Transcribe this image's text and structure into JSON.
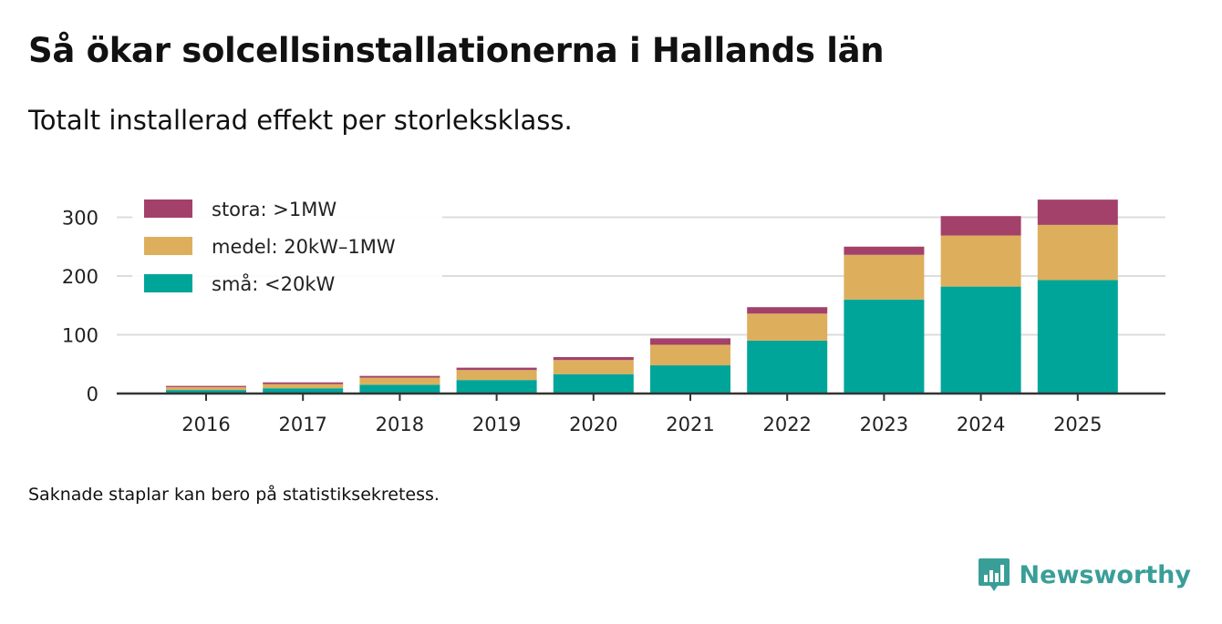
{
  "header": {
    "title": "Så ökar solcellsinstallationerna i Hallands län",
    "subtitle": "Totalt installerad effekt per storleksklass."
  },
  "footer": {
    "caption": "Saknade staplar kan bero på statistiksekretess.",
    "brand": "Newsworthy"
  },
  "colors": {
    "stora": "#a3416b",
    "medel": "#ddaf5c",
    "sma": "#00a59a",
    "grid": "#dcdcdc",
    "axis": "#333333",
    "brand": "#3a9e98"
  },
  "chart_data": {
    "type": "bar",
    "stacked": true,
    "title": "Så ökar solcellsinstallationerna i Hallands län",
    "subtitle": "Totalt installerad effekt per storleksklass.",
    "xlabel": "",
    "ylabel": "",
    "ylim": [
      0,
      330
    ],
    "yticks": [
      0,
      100,
      200,
      300
    ],
    "categories": [
      "2016",
      "2017",
      "2018",
      "2019",
      "2020",
      "2021",
      "2022",
      "2023",
      "2024",
      "2025"
    ],
    "legend_position": "top-left",
    "series": [
      {
        "name": "små: <20kW",
        "key": "sma",
        "values": [
          6,
          9,
          15,
          23,
          33,
          48,
          90,
          160,
          182,
          193
        ]
      },
      {
        "name": "medel: 20kW–1MW",
        "key": "medel",
        "values": [
          5,
          7,
          12,
          17,
          24,
          35,
          46,
          76,
          87,
          94
        ]
      },
      {
        "name": "stora: >1MW",
        "key": "stora",
        "values": [
          2,
          3,
          3,
          4,
          5,
          11,
          11,
          14,
          33,
          43
        ]
      }
    ],
    "legend_order": [
      "stora",
      "medel",
      "sma"
    ]
  }
}
